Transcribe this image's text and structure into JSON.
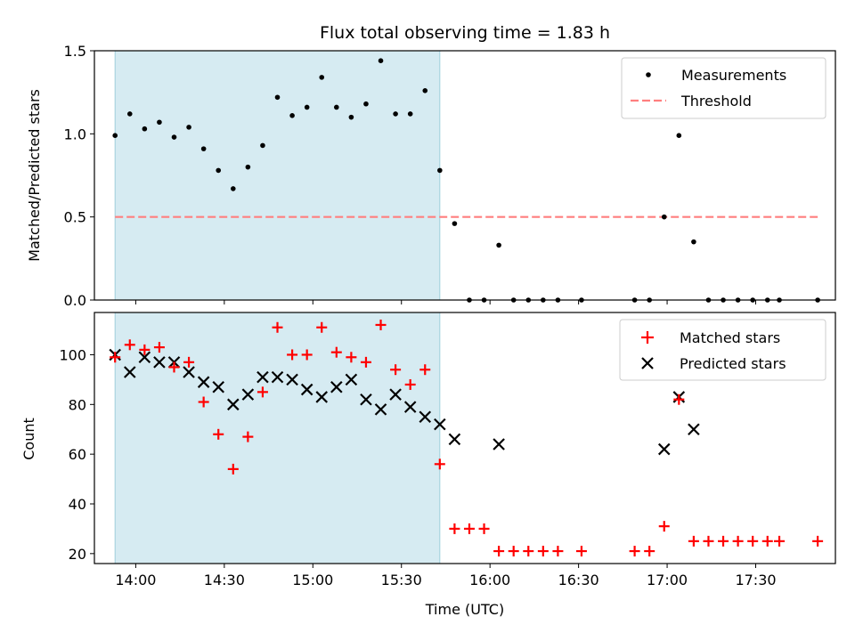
{
  "chart_data": [
    {
      "type": "scatter",
      "title": "Flux total observing time = 1.83 h",
      "xlabel": "",
      "ylabel": "Matched/Predicted stars",
      "ylim": [
        0,
        1.5
      ],
      "yticks": [
        0.0,
        0.5,
        1.0,
        1.5
      ],
      "ytick_labels": [
        "0.0",
        "0.5",
        "1.0",
        "1.5"
      ],
      "grid": false,
      "legend_position": "top-right",
      "shaded_interval": [
        "13:53",
        "15:43"
      ],
      "threshold": {
        "name": "Threshold",
        "y": 0.5,
        "x_start": "13:53",
        "x_end": "17:51",
        "color": "#ff7f7f"
      },
      "series": [
        {
          "name": "Measurements",
          "color": "#000000",
          "points": [
            [
              "13:53",
              0.99
            ],
            [
              "13:58",
              1.12
            ],
            [
              "14:03",
              1.03
            ],
            [
              "14:08",
              1.07
            ],
            [
              "14:13",
              0.98
            ],
            [
              "14:18",
              1.04
            ],
            [
              "14:23",
              0.91
            ],
            [
              "14:28",
              0.78
            ],
            [
              "14:33",
              0.67
            ],
            [
              "14:38",
              0.8
            ],
            [
              "14:43",
              0.93
            ],
            [
              "14:48",
              1.22
            ],
            [
              "14:53",
              1.11
            ],
            [
              "14:58",
              1.16
            ],
            [
              "15:03",
              1.34
            ],
            [
              "15:08",
              1.16
            ],
            [
              "15:13",
              1.1
            ],
            [
              "15:18",
              1.18
            ],
            [
              "15:23",
              1.44
            ],
            [
              "15:28",
              1.12
            ],
            [
              "15:33",
              1.12
            ],
            [
              "15:38",
              1.26
            ],
            [
              "15:43",
              0.78
            ],
            [
              "15:48",
              0.46
            ],
            [
              "15:53",
              0.0
            ],
            [
              "15:58",
              0.0
            ],
            [
              "16:03",
              0.33
            ],
            [
              "16:08",
              0.0
            ],
            [
              "16:13",
              0.0
            ],
            [
              "16:18",
              0.0
            ],
            [
              "16:23",
              0.0
            ],
            [
              "16:31",
              0.0
            ],
            [
              "16:49",
              0.0
            ],
            [
              "16:54",
              0.0
            ],
            [
              "16:59",
              0.5
            ],
            [
              "17:04",
              0.99
            ],
            [
              "17:09",
              0.35
            ],
            [
              "17:14",
              0.0
            ],
            [
              "17:19",
              0.0
            ],
            [
              "17:24",
              0.0
            ],
            [
              "17:29",
              0.0
            ],
            [
              "17:34",
              0.0
            ],
            [
              "17:38",
              0.0
            ],
            [
              "17:51",
              0.0
            ]
          ]
        }
      ]
    },
    {
      "type": "scatter",
      "title": "",
      "xlabel": "Time (UTC)",
      "ylabel": "Count",
      "ylim": [
        16,
        117
      ],
      "yticks": [
        20,
        40,
        60,
        80,
        100
      ],
      "ytick_labels": [
        "20",
        "40",
        "60",
        "80",
        "100"
      ],
      "xticks": [
        "14:00",
        "14:30",
        "15:00",
        "15:30",
        "16:00",
        "16:30",
        "17:00",
        "17:30"
      ],
      "xlim": [
        "13:46",
        "17:57"
      ],
      "grid": false,
      "legend_position": "top-right",
      "shaded_interval": [
        "13:53",
        "15:43"
      ],
      "series": [
        {
          "name": "Matched stars",
          "color": "#ff0000",
          "marker": "plus",
          "points": [
            [
              "13:53",
              99
            ],
            [
              "13:58",
              104
            ],
            [
              "14:03",
              102
            ],
            [
              "14:08",
              103
            ],
            [
              "14:13",
              95
            ],
            [
              "14:18",
              97
            ],
            [
              "14:23",
              81
            ],
            [
              "14:28",
              68
            ],
            [
              "14:33",
              54
            ],
            [
              "14:38",
              67
            ],
            [
              "14:43",
              85
            ],
            [
              "14:48",
              111
            ],
            [
              "14:53",
              100
            ],
            [
              "14:58",
              100
            ],
            [
              "15:03",
              111
            ],
            [
              "15:08",
              101
            ],
            [
              "15:13",
              99
            ],
            [
              "15:18",
              97
            ],
            [
              "15:23",
              112
            ],
            [
              "15:28",
              94
            ],
            [
              "15:33",
              88
            ],
            [
              "15:38",
              94
            ],
            [
              "15:43",
              56
            ],
            [
              "15:48",
              30
            ],
            [
              "15:53",
              30
            ],
            [
              "15:58",
              30
            ],
            [
              "16:03",
              21
            ],
            [
              "16:08",
              21
            ],
            [
              "16:13",
              21
            ],
            [
              "16:18",
              21
            ],
            [
              "16:23",
              21
            ],
            [
              "16:31",
              21
            ],
            [
              "16:49",
              21
            ],
            [
              "16:54",
              21
            ],
            [
              "16:59",
              31
            ],
            [
              "17:04",
              82
            ],
            [
              "17:09",
              25
            ],
            [
              "17:14",
              25
            ],
            [
              "17:19",
              25
            ],
            [
              "17:24",
              25
            ],
            [
              "17:29",
              25
            ],
            [
              "17:34",
              25
            ],
            [
              "17:38",
              25
            ],
            [
              "17:51",
              25
            ]
          ]
        },
        {
          "name": "Predicted stars",
          "color": "#000000",
          "marker": "x",
          "points": [
            [
              "13:53",
              100
            ],
            [
              "13:58",
              93
            ],
            [
              "14:03",
              99
            ],
            [
              "14:08",
              97
            ],
            [
              "14:13",
              97
            ],
            [
              "14:18",
              93
            ],
            [
              "14:23",
              89
            ],
            [
              "14:28",
              87
            ],
            [
              "14:33",
              80
            ],
            [
              "14:38",
              84
            ],
            [
              "14:43",
              91
            ],
            [
              "14:48",
              91
            ],
            [
              "14:53",
              90
            ],
            [
              "14:58",
              86
            ],
            [
              "15:03",
              83
            ],
            [
              "15:08",
              87
            ],
            [
              "15:13",
              90
            ],
            [
              "15:18",
              82
            ],
            [
              "15:23",
              78
            ],
            [
              "15:28",
              84
            ],
            [
              "15:33",
              79
            ],
            [
              "15:38",
              75
            ],
            [
              "15:43",
              72
            ],
            [
              "15:48",
              66
            ],
            [
              "16:03",
              64
            ],
            [
              "16:59",
              62
            ],
            [
              "17:04",
              83
            ],
            [
              "17:09",
              70
            ]
          ]
        }
      ]
    }
  ]
}
